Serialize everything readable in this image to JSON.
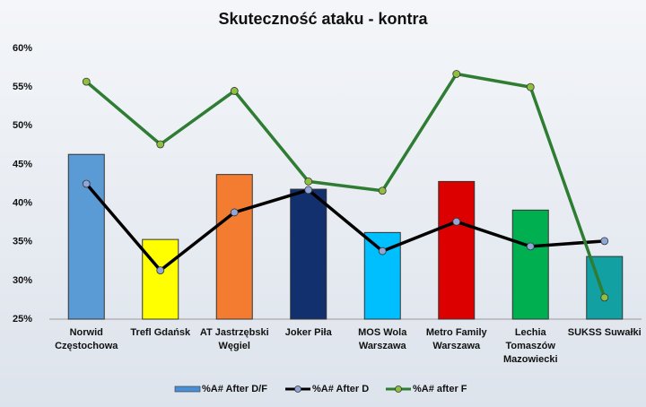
{
  "chart_data": {
    "type": "bar-line",
    "title": "Skuteczność ataku - kontra",
    "categories": [
      "Norwid Częstochowa",
      "Trefl Gdańsk",
      "AT Jastrzębski Węgiel",
      "Joker Piła",
      "MOS Wola Warszawa",
      "Metro Family Warszawa",
      "Lechia Tomaszów Mazowiecki",
      "SUKSS Suwałki"
    ],
    "series": [
      {
        "name": "%A# After D/F",
        "type": "bar",
        "color": "#4a8fd6",
        "colors": [
          "#5b9bd5",
          "#ffff00",
          "#f47c30",
          "#13306e",
          "#00bfff",
          "#dd0000",
          "#00b050",
          "#12a0a3"
        ],
        "values": [
          46.3,
          35.3,
          43.7,
          41.8,
          36.2,
          42.8,
          39.1,
          33.1
        ]
      },
      {
        "name": "%A# After D",
        "type": "line",
        "color": "#000000",
        "values": [
          42.5,
          31.3,
          38.8,
          41.7,
          33.8,
          37.6,
          34.4,
          35.1
        ]
      },
      {
        "name": "%A# after F",
        "type": "line",
        "color": "#2e7d32",
        "values": [
          55.7,
          47.6,
          54.5,
          42.8,
          41.6,
          56.7,
          55.0,
          27.8
        ]
      }
    ],
    "ylim": [
      25,
      60
    ],
    "yticks": [
      {
        "value": 25,
        "label": "25%"
      },
      {
        "value": 30,
        "label": "30%"
      },
      {
        "value": 35,
        "label": "35%"
      },
      {
        "value": 40,
        "label": "40%"
      },
      {
        "value": 45,
        "label": "45%"
      },
      {
        "value": 50,
        "label": "50%"
      },
      {
        "value": 55,
        "label": "55%"
      },
      {
        "value": 60,
        "label": "60%"
      }
    ],
    "grid": false,
    "legend": "bottom"
  }
}
